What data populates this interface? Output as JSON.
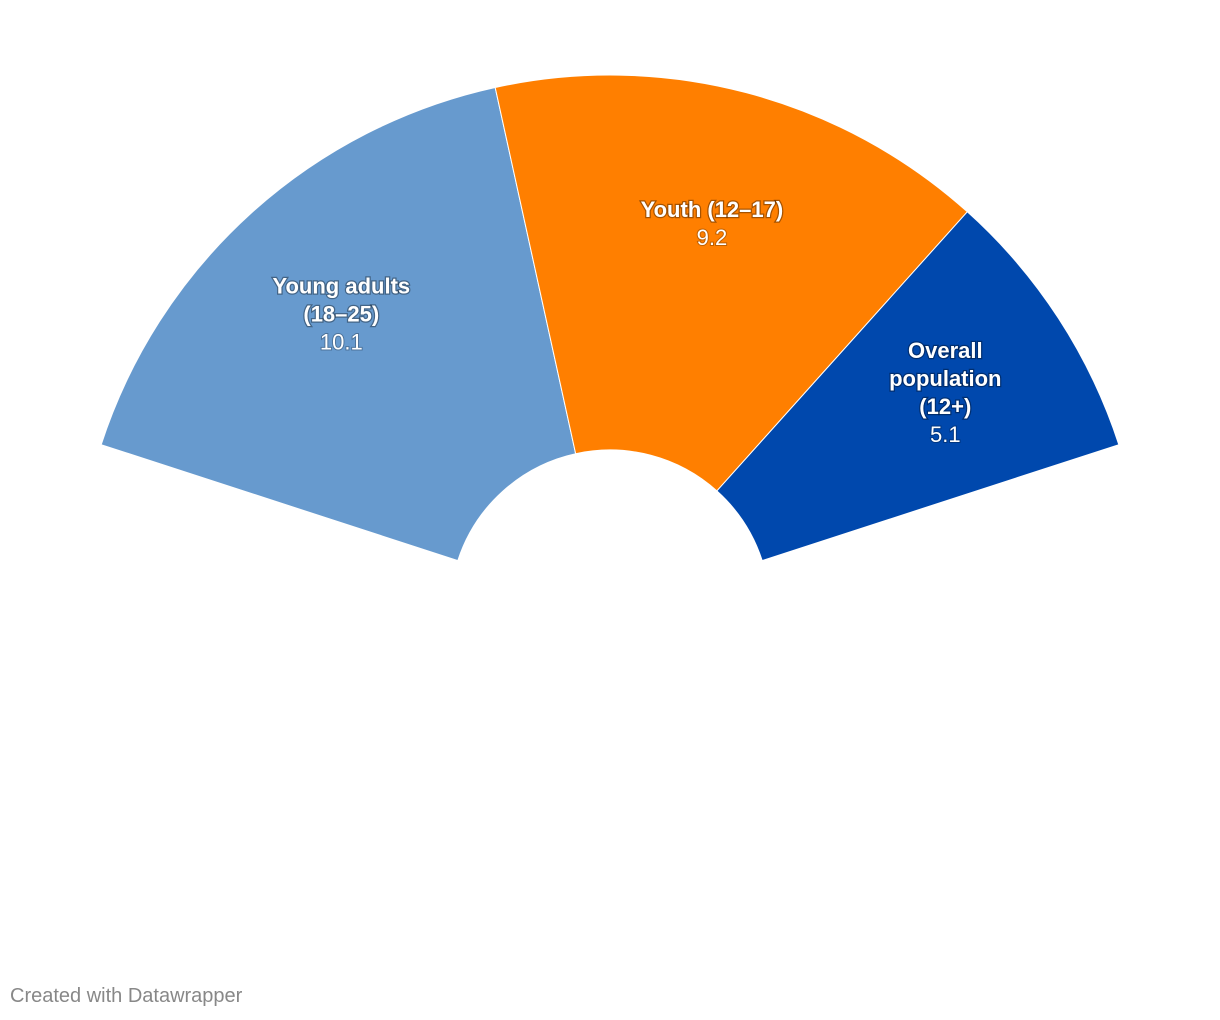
{
  "chart_data": {
    "type": "pie",
    "variant": "semi-donut",
    "slices": [
      {
        "label_lines": [
          "Young adults",
          "(18–25)"
        ],
        "value": 10.1,
        "value_text": "10.1",
        "color": "#679ace"
      },
      {
        "label_lines": [
          "Youth (12–17)"
        ],
        "value": 9.2,
        "value_text": "9.2",
        "color": "#ff7f00"
      },
      {
        "label_lines": [
          "Overall",
          "population",
          "(12+)"
        ],
        "value": 5.1,
        "value_text": "5.1",
        "color": "#0048ad"
      }
    ]
  },
  "footer": {
    "credit": "Created with Datawrapper"
  }
}
